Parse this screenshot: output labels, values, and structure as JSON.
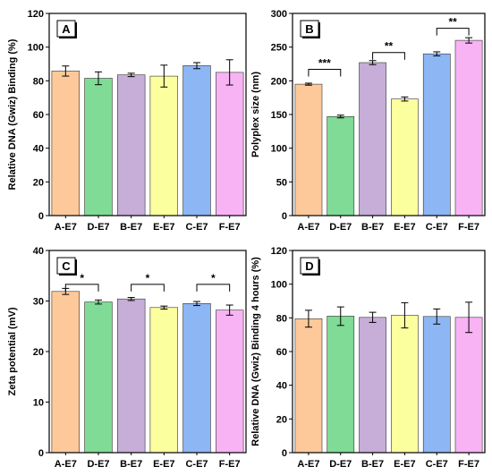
{
  "chart_data": [
    {
      "type": "bar",
      "panel": "A",
      "categories": [
        "A-E7",
        "D-E7",
        "B-E7",
        "E-E7",
        "C-E7",
        "F-E7"
      ],
      "values": [
        85.8,
        81.5,
        83.5,
        82.8,
        89.0,
        85.0
      ],
      "errors": [
        3.0,
        3.8,
        1.0,
        6.5,
        1.8,
        7.5
      ],
      "ylabel": "Relative DNA (Gwiz) Binding (%)",
      "xlabel": "",
      "ylim": [
        0,
        120
      ],
      "yticks": [
        0,
        20,
        40,
        60,
        80,
        100,
        120
      ],
      "significance": []
    },
    {
      "type": "bar",
      "panel": "B",
      "categories": [
        "A-E7",
        "D-E7",
        "B-E7",
        "E-E7",
        "C-E7",
        "F-E7"
      ],
      "values": [
        195,
        147,
        227,
        173,
        240,
        260
      ],
      "errors": [
        1.5,
        2.0,
        3.0,
        3.0,
        3.0,
        4.0
      ],
      "ylabel": "Polyplex size (nm)",
      "xlabel": "",
      "ylim": [
        0,
        300
      ],
      "yticks": [
        0,
        50,
        100,
        150,
        200,
        250,
        300
      ],
      "significance": [
        {
          "from": 0,
          "to": 1,
          "level": 217,
          "label": "***"
        },
        {
          "from": 2,
          "to": 3,
          "level": 242,
          "label": "**"
        },
        {
          "from": 4,
          "to": 5,
          "level": 278,
          "label": "**"
        }
      ]
    },
    {
      "type": "bar",
      "panel": "C",
      "categories": [
        "A-E7",
        "D-E7",
        "B-E7",
        "E-E7",
        "C-E7",
        "F-E7"
      ],
      "values": [
        31.9,
        29.8,
        30.4,
        28.7,
        29.5,
        28.2
      ],
      "errors": [
        0.6,
        0.4,
        0.3,
        0.3,
        0.4,
        1.0
      ],
      "ylabel": "Zeta potential (mV)",
      "xlabel": "",
      "ylim": [
        0,
        40
      ],
      "yticks": [
        0,
        10,
        20,
        30,
        40
      ],
      "significance": [
        {
          "from": 0,
          "to": 1,
          "level": 33.3,
          "label": "*"
        },
        {
          "from": 2,
          "to": 3,
          "level": 33.3,
          "label": "*"
        },
        {
          "from": 4,
          "to": 5,
          "level": 33.3,
          "label": "*"
        }
      ]
    },
    {
      "type": "bar",
      "panel": "D",
      "categories": [
        "A-E7",
        "D-E7",
        "B-E7",
        "E-E7",
        "C-E7",
        "F-E7"
      ],
      "values": [
        79.5,
        81.0,
        80.3,
        81.5,
        80.8,
        80.3
      ],
      "errors": [
        5.0,
        5.5,
        3.0,
        7.5,
        4.5,
        9.0
      ],
      "ylabel": "Relative DNA (Gwiz) Binding 4 hours (%)",
      "xlabel": "",
      "ylim": [
        0,
        120
      ],
      "yticks": [
        0,
        20,
        40,
        60,
        80,
        100,
        120
      ],
      "significance": []
    }
  ],
  "colors": {
    "bars": [
      "#FDC99A",
      "#7FDB95",
      "#C6AED8",
      "#FCFF9D",
      "#8DB6F4",
      "#F8B3F4"
    ],
    "axis": "#000000"
  }
}
